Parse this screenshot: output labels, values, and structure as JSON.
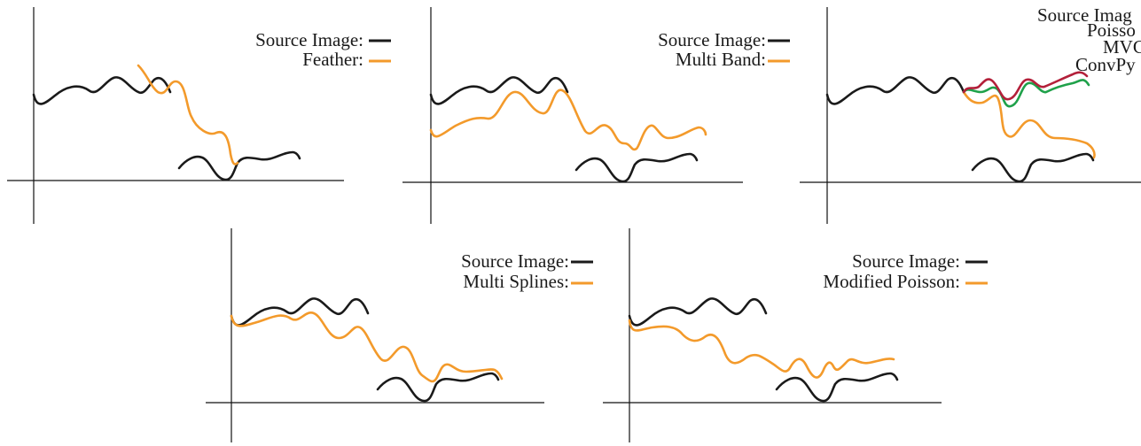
{
  "colors": {
    "source": "#1a1a1a",
    "blend": "#f39a2b",
    "poisson": "#b3203a",
    "mvc": "#1fa14a",
    "convpyr": "#f39a2b",
    "axis": "#111111"
  },
  "panels": [
    {
      "id": "feather",
      "legend": [
        {
          "label": "Source Image:",
          "color_key": "source"
        },
        {
          "label": "Feather:",
          "color_key": "blend"
        }
      ]
    },
    {
      "id": "multi-band",
      "legend": [
        {
          "label": "Source Image:",
          "color_key": "source"
        },
        {
          "label": "Multi Band:",
          "color_key": "blend"
        }
      ]
    },
    {
      "id": "poisson-mvc-convpyr",
      "legend": [
        {
          "label": "Source Imag",
          "color_key": "source"
        },
        {
          "label": "Poisso",
          "color_key": "poisson"
        },
        {
          "label": "MVC",
          "color_key": "mvc"
        },
        {
          "label": "ConvPy",
          "color_key": "convpyr"
        }
      ]
    },
    {
      "id": "multi-splines",
      "legend": [
        {
          "label": "Source Image:",
          "color_key": "source"
        },
        {
          "label": "Multi Splines:",
          "color_key": "blend"
        }
      ]
    },
    {
      "id": "modified-poisson",
      "legend": [
        {
          "label": "Source Image:",
          "color_key": "source"
        },
        {
          "label": "Modified Poisson:",
          "color_key": "blend"
        }
      ]
    }
  ]
}
